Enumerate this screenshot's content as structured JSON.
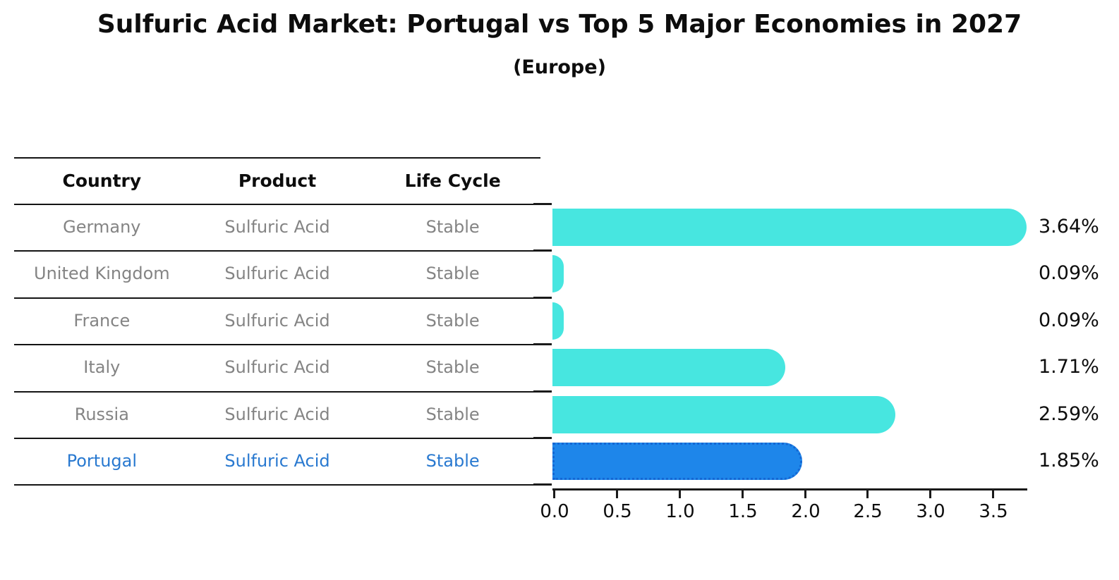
{
  "title": "Sulfuric Acid Market: Portugal vs Top 5 Major Economies in 2027",
  "subtitle": "(Europe)",
  "table": {
    "headers": [
      "Country",
      "Product",
      "Life Cycle"
    ],
    "rows": [
      {
        "country": "Germany",
        "product": "Sulfuric Acid",
        "life_cycle": "Stable",
        "highlighted": false
      },
      {
        "country": "United Kingdom",
        "product": "Sulfuric Acid",
        "life_cycle": "Stable",
        "highlighted": false
      },
      {
        "country": "France",
        "product": "Sulfuric Acid",
        "life_cycle": "Stable",
        "highlighted": false
      },
      {
        "country": "Italy",
        "product": "Sulfuric Acid",
        "life_cycle": "Stable",
        "highlighted": false
      },
      {
        "country": "Russia",
        "product": "Sulfuric Acid",
        "life_cycle": "Stable",
        "highlighted": false
      },
      {
        "country": "Portugal",
        "product": "Sulfuric Acid",
        "life_cycle": "Stable",
        "highlighted": true
      }
    ]
  },
  "chart_data": {
    "type": "bar",
    "orientation": "horizontal",
    "title": "Sulfuric Acid Market: Portugal vs Top 5 Major Economies in 2027",
    "subtitle": "(Europe)",
    "categories": [
      "Germany",
      "United Kingdom",
      "France",
      "Italy",
      "Russia",
      "Portugal"
    ],
    "values": [
      3.64,
      0.09,
      0.09,
      1.71,
      2.59,
      1.85
    ],
    "value_labels": [
      "3.64%",
      "0.09%",
      "0.09%",
      "1.71%",
      "2.59%",
      "1.85%"
    ],
    "xlabel": "",
    "ylabel": "",
    "xlim": [
      0.0,
      3.79
    ],
    "x_ticks": [
      "0.0",
      "0.5",
      "1.0",
      "1.5",
      "2.0",
      "2.5",
      "3.0",
      "3.5"
    ],
    "grid": false,
    "legend": "none",
    "bar_color": "#47E6E0",
    "highlight_index": 5,
    "highlight_color": "#1E86EA",
    "highlight_border_color": "#1467D3"
  },
  "colors": {
    "title_text": "#0d0d0d",
    "table_text": "#848484",
    "table_line": "#141414",
    "highlight_text": "#2979D0",
    "axis": "#1a1a1a"
  }
}
